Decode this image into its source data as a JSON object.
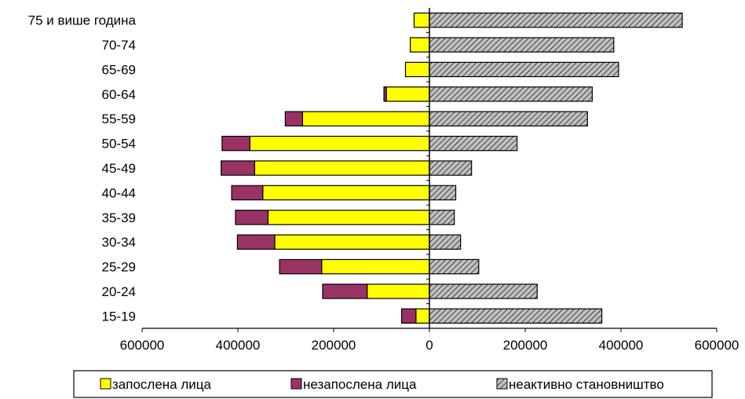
{
  "chart_data": {
    "type": "bar",
    "orientation": "horizontal",
    "layout": "diverging-stacked",
    "categories": [
      "15-19",
      "20-24",
      "25-29",
      "30-34",
      "35-39",
      "40-44",
      "45-49",
      "50-54",
      "55-59",
      "60-64",
      "65-69",
      "70-74",
      "75 и више година"
    ],
    "series": [
      {
        "name": "запослена лица",
        "side": "left",
        "color": "#ffff00",
        "pattern": "solid",
        "values": [
          28000,
          130000,
          225000,
          323000,
          337000,
          348000,
          365000,
          375000,
          265000,
          90000,
          50000,
          40000,
          32000
        ]
      },
      {
        "name": "незапослена лица",
        "side": "left",
        "color": "#993366",
        "pattern": "solid",
        "values": [
          30000,
          93000,
          88000,
          78000,
          68000,
          65000,
          70000,
          58000,
          36000,
          5000,
          0,
          0,
          0
        ]
      },
      {
        "name": "неактивно становништво",
        "side": "right",
        "color": "#c0c0c0",
        "pattern": "diagonal-hatch",
        "values": [
          360000,
          225000,
          103000,
          65000,
          52000,
          55000,
          88000,
          183000,
          330000,
          340000,
          395000,
          385000,
          528000
        ]
      }
    ],
    "x_ticks": [
      "600000",
      "400000",
      "200000",
      "0",
      "200000",
      "400000",
      "600000"
    ],
    "x_tick_values": [
      -600000,
      -400000,
      -200000,
      0,
      200000,
      400000,
      600000
    ],
    "xlim": [
      -600000,
      600000
    ],
    "grid": false,
    "legend": {
      "position": "bottom"
    }
  }
}
